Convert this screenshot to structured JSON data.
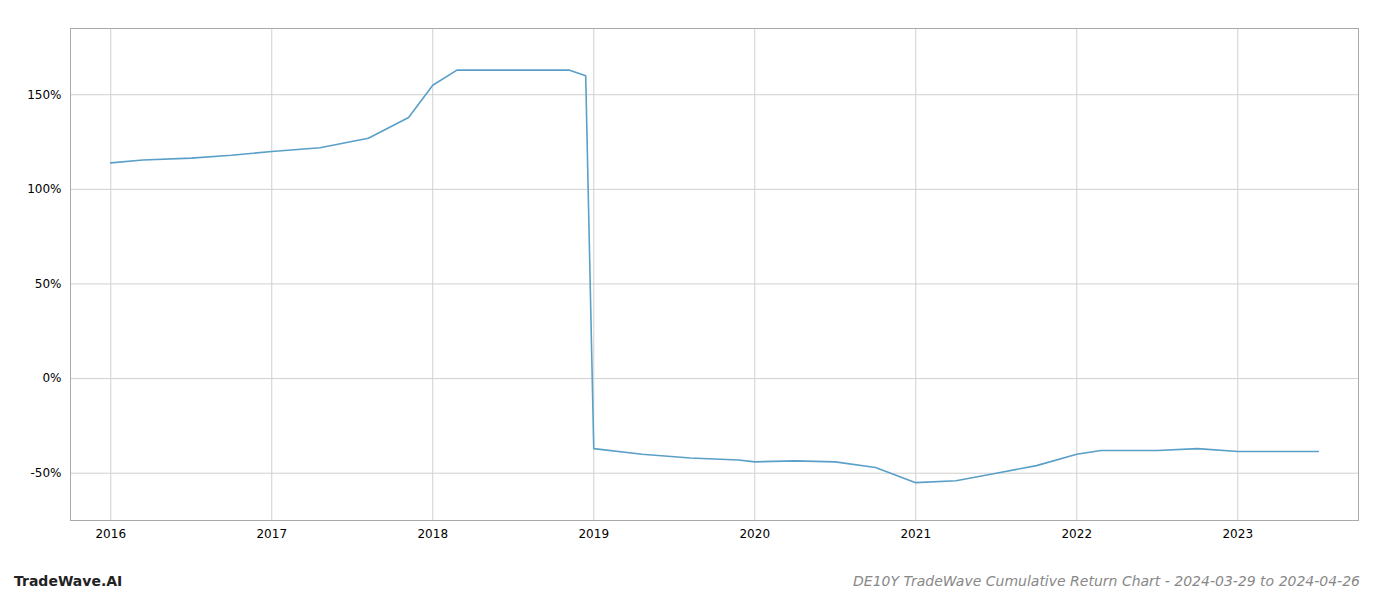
{
  "chart_data": {
    "type": "line",
    "title": "DE10Y TradeWave Cumulative Return Chart - 2024-03-29 to 2024-04-26",
    "annotations": [
      "TradeWave.AI"
    ],
    "x": [
      2016.0,
      2016.2,
      2016.5,
      2016.75,
      2017.0,
      2017.3,
      2017.6,
      2017.85,
      2018.0,
      2018.15,
      2018.85,
      2018.95,
      2019.0,
      2019.3,
      2019.6,
      2019.9,
      2020.0,
      2020.25,
      2020.5,
      2020.75,
      2021.0,
      2021.25,
      2021.5,
      2021.75,
      2022.0,
      2022.15,
      2022.5,
      2022.75,
      2023.0,
      2023.25,
      2023.5
    ],
    "values": [
      1.14,
      1.155,
      1.165,
      1.18,
      1.2,
      1.22,
      1.27,
      1.38,
      1.55,
      1.63,
      1.63,
      1.6,
      -0.37,
      -0.4,
      -0.42,
      -0.43,
      -0.44,
      -0.435,
      -0.44,
      -0.47,
      -0.55,
      -0.54,
      -0.5,
      -0.46,
      -0.4,
      -0.38,
      -0.38,
      -0.37,
      -0.385,
      -0.385,
      -0.385
    ],
    "color": "#5a9fc8",
    "xlim": [
      2015.75,
      2023.75
    ],
    "ylim": [
      -0.75,
      1.85
    ],
    "xticks": [
      2016,
      2017,
      2018,
      2019,
      2020,
      2021,
      2022,
      2023
    ],
    "yticks": [
      {
        "value": -0.5,
        "label": "-50%"
      },
      {
        "value": 0.0,
        "label": "0%"
      },
      {
        "value": 0.5,
        "label": "50%"
      },
      {
        "value": 1.0,
        "label": "100%"
      },
      {
        "value": 1.5,
        "label": "150%"
      }
    ],
    "grid": true
  }
}
